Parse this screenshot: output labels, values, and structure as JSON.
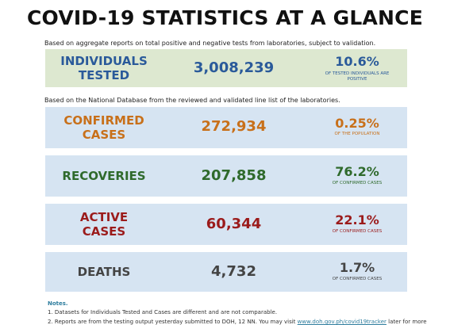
{
  "title": "COVID-19 STATISTICS AT A GLANCE",
  "note_tests": "Based on aggregate reports on total positive and negative tests from laboratories, subject to validation.",
  "note_db": "Based on the National Database from the reviewed and validated line list of the laboratories.",
  "colors": {
    "blue": "#2a5a9a",
    "orange": "#c8701a",
    "green": "#2f6a2c",
    "red": "#9b1b1b",
    "gray": "#444444",
    "panel_blue": "#d6e4f2",
    "panel_green": "#dde8d0"
  },
  "stats": {
    "tested": {
      "label1": "INDIVIDUALS",
      "label2": "TESTED",
      "value": "3,008,239",
      "percent": "10.6%",
      "sub": "OF TESTED INDIVIDUALS ARE POSITIVE"
    },
    "confirmed": {
      "label1": "CONFIRMED",
      "label2": "CASES",
      "value": "272,934",
      "percent": "0.25%",
      "sub": "OF THE POPULATION"
    },
    "recoveries": {
      "label": "RECOVERIES",
      "value": "207,858",
      "percent": "76.2%",
      "sub": "OF CONFIRMED CASES"
    },
    "active": {
      "label1": "ACTIVE",
      "label2": "CASES",
      "value": "60,344",
      "percent": "22.1%",
      "sub": "OF CONFIRMED CASES"
    },
    "deaths": {
      "label": "DEATHS",
      "value": "4,732",
      "percent": "1.7%",
      "sub": "OF CONFIRMED CASES"
    }
  },
  "notes": {
    "heading": "Notes.",
    "item1": "1. Datasets for Individuals Tested and Cases are different and are not comparable.",
    "item2_start": "2. Reports are from the testing output yesterday submitted to DOH, 12 NN. You may visit",
    "item2_link": "www.doh.gov.ph/covid19tracker",
    "item2_end": "later for more"
  }
}
